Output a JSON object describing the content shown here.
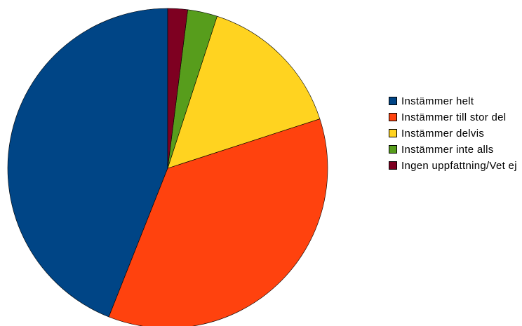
{
  "chart_data": {
    "type": "pie",
    "title": "",
    "categories": [
      "Instämmer helt",
      "Instämmer till stor del",
      "Instämmer delvis",
      "Instämmer inte alls",
      "Ingen uppfattning/Vet ej"
    ],
    "values": [
      44,
      36,
      15,
      3,
      2
    ],
    "colors": [
      "#004586",
      "#ff420e",
      "#ffd320",
      "#579d1c",
      "#7e0021"
    ],
    "start": "12 o'clock",
    "direction": "counterclockwise",
    "legend_position": "right"
  }
}
